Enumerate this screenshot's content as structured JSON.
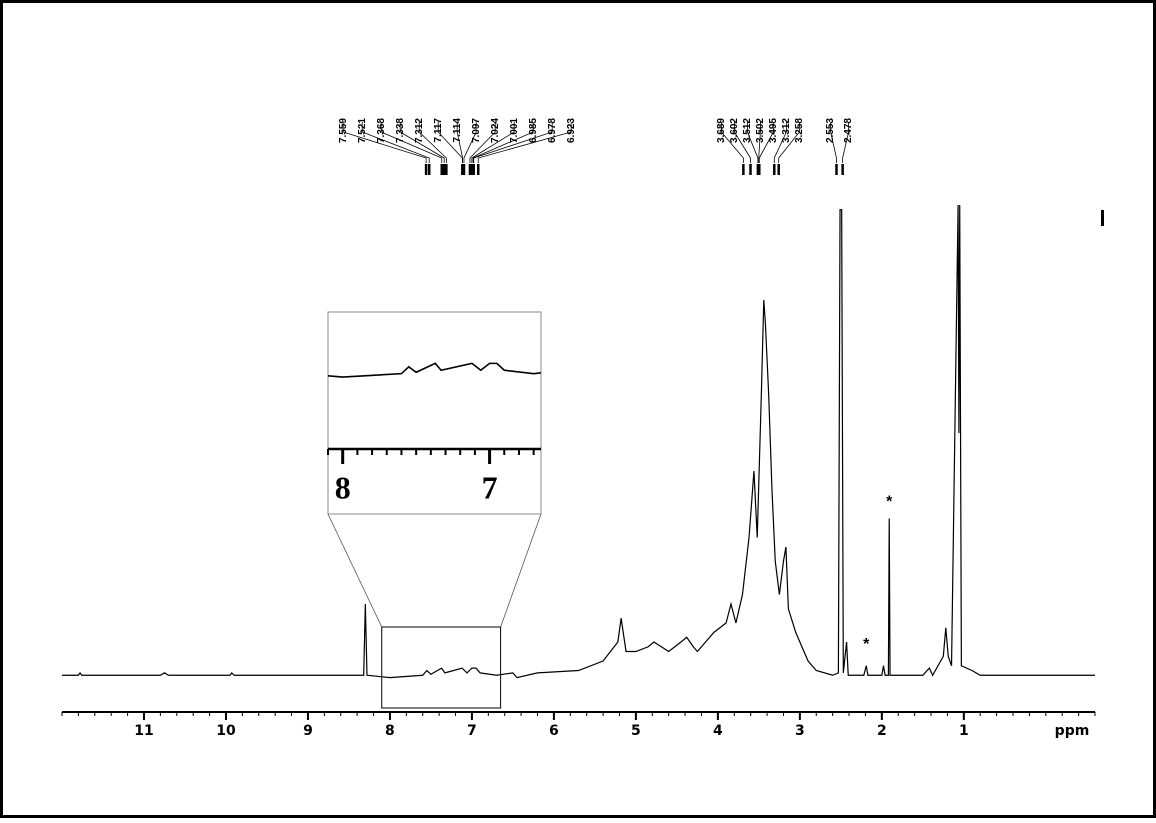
{
  "chart_data": {
    "type": "line",
    "x_label": "ppm",
    "xlim": [
      12.0,
      -0.6
    ],
    "xticks": [
      11,
      10,
      9,
      8,
      7,
      6,
      5,
      4,
      3,
      2,
      1
    ],
    "xminor_step": 0.2,
    "ylim": [
      0,
      100
    ],
    "color": "#000000",
    "x": [
      12.0,
      11.8,
      11.78,
      11.76,
      10.8,
      10.75,
      10.7,
      9.95,
      9.93,
      9.9,
      8.8,
      8.32,
      8.3,
      8.28,
      8.0,
      7.6,
      7.55,
      7.5,
      7.37,
      7.33,
      7.12,
      7.06,
      7.0,
      6.95,
      6.9,
      6.7,
      6.5,
      6.45,
      6.2,
      5.7,
      5.4,
      5.22,
      5.18,
      5.12,
      5.0,
      4.85,
      4.78,
      4.6,
      4.45,
      4.38,
      4.3,
      4.25,
      4.05,
      3.9,
      3.84,
      3.78,
      3.7,
      3.62,
      3.56,
      3.52,
      3.47,
      3.44,
      3.42,
      3.38,
      3.34,
      3.3,
      3.25,
      3.2,
      3.17,
      3.14,
      3.05,
      3.0,
      2.9,
      2.8,
      2.6,
      2.53,
      2.51,
      2.49,
      2.47,
      2.43,
      2.41,
      2.22,
      2.19,
      2.17,
      2.0,
      1.98,
      1.96,
      1.92,
      1.91,
      1.9,
      1.5,
      1.42,
      1.38,
      1.25,
      1.22,
      1.19,
      1.15,
      1.07,
      1.06,
      1.05,
      1.03,
      0.9,
      0.8,
      -0.6
    ],
    "values": [
      1,
      1,
      1.5,
      1,
      1,
      1.5,
      1,
      1,
      1.5,
      1,
      1,
      1,
      16,
      1,
      0.5,
      1,
      2,
      1.2,
      2.5,
      1.5,
      2.5,
      1.5,
      2.5,
      2.5,
      1.5,
      1,
      1.5,
      0.5,
      1.5,
      2,
      4,
      8,
      13,
      6,
      6,
      7,
      8,
      6,
      8,
      9,
      7,
      6,
      10,
      12,
      16,
      12,
      18,
      30,
      44,
      30,
      60,
      80,
      75,
      60,
      40,
      25,
      18,
      25,
      28,
      15,
      10,
      8,
      4,
      2,
      1,
      1.5,
      99,
      99,
      1.5,
      8,
      1,
      1,
      3,
      1,
      1,
      3,
      1,
      1,
      34,
      1,
      1,
      2.5,
      1,
      5,
      11,
      5,
      3,
      100,
      52,
      100,
      3,
      2,
      1,
      1
    ],
    "peak_labels": [
      7.559,
      7.521,
      7.368,
      7.338,
      7.312,
      7.117,
      7.114,
      7.097,
      7.024,
      7.001,
      6.985,
      6.978,
      6.923,
      3.689,
      3.602,
      3.512,
      3.502,
      3.495,
      3.312,
      3.258,
      2.553,
      2.478
    ],
    "annotations": [
      {
        "text": "*",
        "x": 2.19,
        "y": 7
      },
      {
        "text": "*",
        "x": 1.91,
        "y": 37
      }
    ],
    "inset": {
      "xlim": [
        8.1,
        6.65
      ],
      "ylim": [
        -10,
        10
      ],
      "xticks": [
        8,
        7
      ],
      "xminor_step": 0.1
    }
  }
}
